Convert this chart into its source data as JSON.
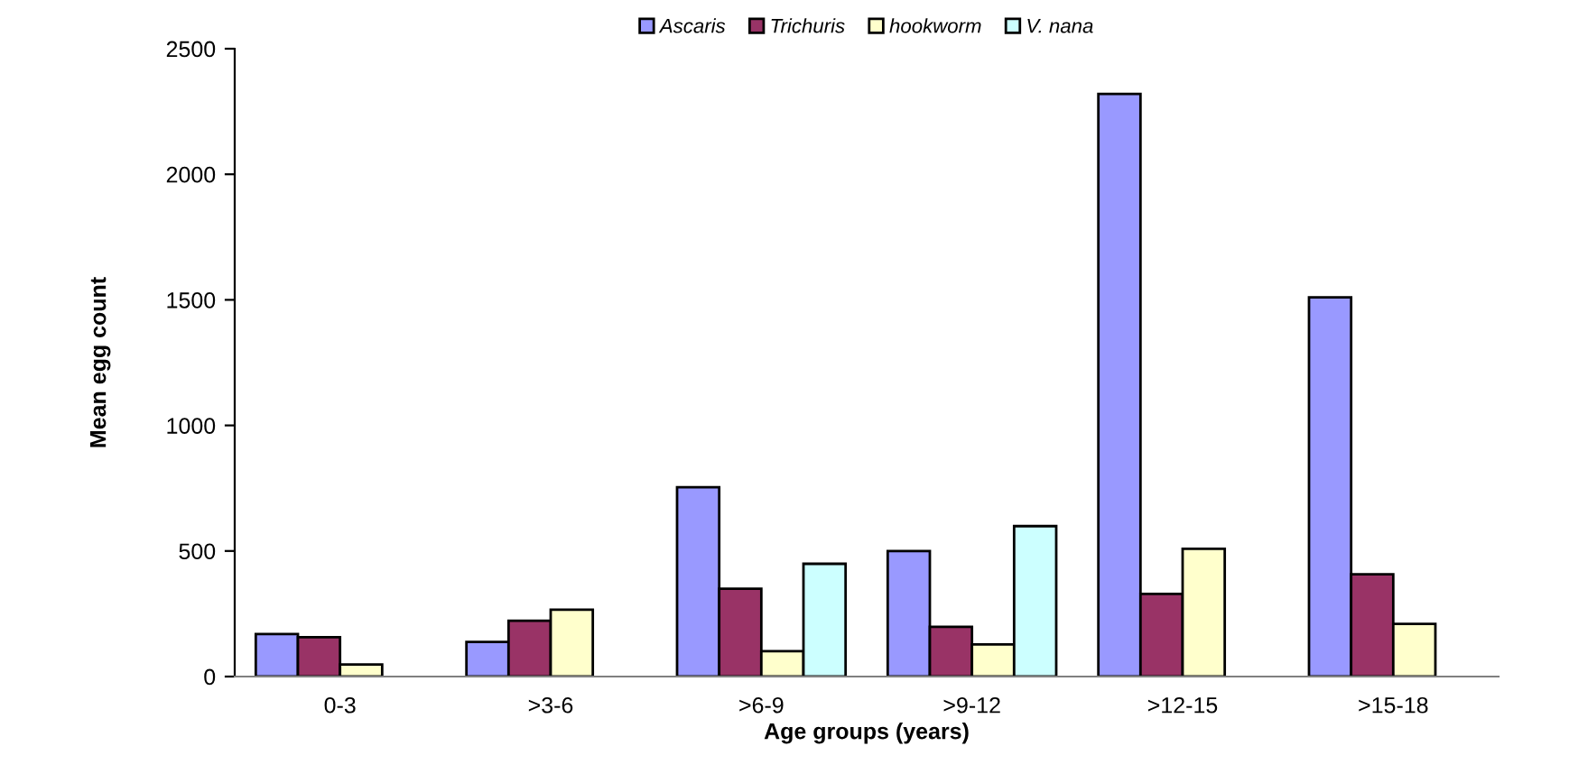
{
  "chart_data": {
    "type": "bar",
    "xlabel": "Age groups (years)",
    "ylabel": "Mean egg count",
    "categories": [
      "0-3",
      ">3-6",
      ">6-9",
      ">9-12",
      ">12-15",
      ">15-18"
    ],
    "series": [
      {
        "name": "Ascaris",
        "color": "#9999ff",
        "values": [
          169,
          138,
          754,
          500,
          2320,
          1510
        ]
      },
      {
        "name": "Trichuris",
        "color": "#993366",
        "values": [
          157,
          222,
          350,
          198,
          329,
          407
        ]
      },
      {
        "name": "hookworm",
        "color": "#ffffcc",
        "values": [
          48,
          266,
          101,
          128,
          509,
          210
        ]
      },
      {
        "name": "V. nana",
        "color": "#ccffff",
        "values": [
          null,
          null,
          449,
          599,
          null,
          null
        ]
      }
    ],
    "ylim": [
      0,
      2500
    ],
    "yticks": [
      0,
      500,
      1000,
      1500,
      2000,
      2500
    ],
    "grid": false,
    "legend": "top"
  }
}
